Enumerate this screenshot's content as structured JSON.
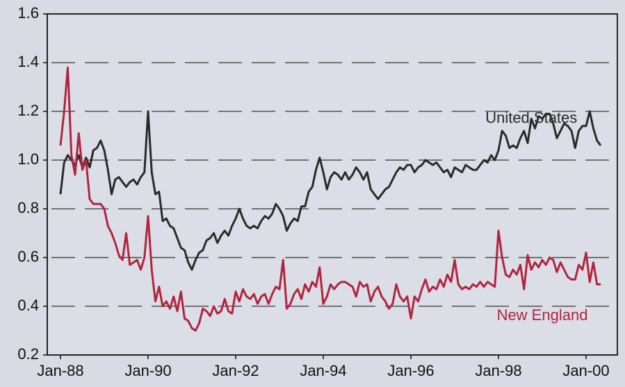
{
  "chart_data": {
    "type": "line",
    "categories": [
      "Jan-88",
      null,
      null,
      null,
      null,
      null,
      null,
      null,
      null,
      null,
      null,
      null,
      null,
      null,
      null,
      null,
      null,
      null,
      null,
      null,
      null,
      null,
      null,
      null,
      "Jan-90",
      null,
      null,
      null,
      null,
      null,
      null,
      null,
      null,
      null,
      null,
      null,
      null,
      null,
      null,
      null,
      null,
      null,
      null,
      null,
      null,
      null,
      null,
      null,
      "Jan-92",
      null,
      null,
      null,
      null,
      null,
      null,
      null,
      null,
      null,
      null,
      null,
      null,
      null,
      null,
      null,
      null,
      null,
      null,
      null,
      null,
      null,
      null,
      null,
      "Jan-94",
      null,
      null,
      null,
      null,
      null,
      null,
      null,
      null,
      null,
      null,
      null,
      null,
      null,
      null,
      null,
      null,
      null,
      null,
      null,
      null,
      null,
      null,
      null,
      "Jan-96",
      null,
      null,
      null,
      null,
      null,
      null,
      null,
      null,
      null,
      null,
      null,
      null,
      null,
      null,
      null,
      null,
      null,
      null,
      null,
      null,
      null,
      null,
      null,
      "Jan-98",
      null,
      null,
      null,
      null,
      null,
      null,
      null,
      null,
      null,
      null,
      null,
      null,
      null,
      null,
      null,
      null,
      null,
      null,
      null,
      null,
      null,
      null,
      null,
      "Jan-00",
      null,
      null,
      null,
      null
    ],
    "series": [
      {
        "name": "United States",
        "color": "#2a2a2a",
        "values": [
          0.86,
          0.99,
          1.02,
          1.0,
          0.98,
          1.02,
          0.97,
          1.01,
          0.97,
          1.04,
          1.05,
          1.08,
          1.04,
          0.96,
          0.86,
          0.92,
          0.93,
          0.91,
          0.89,
          0.91,
          0.92,
          0.9,
          0.93,
          0.95,
          1.2,
          0.95,
          0.86,
          0.87,
          0.75,
          0.76,
          0.73,
          0.72,
          0.68,
          0.64,
          0.63,
          0.58,
          0.55,
          0.59,
          0.62,
          0.63,
          0.67,
          0.68,
          0.7,
          0.66,
          0.69,
          0.71,
          0.69,
          0.73,
          0.76,
          0.8,
          0.76,
          0.73,
          0.72,
          0.73,
          0.72,
          0.75,
          0.77,
          0.76,
          0.78,
          0.82,
          0.8,
          0.77,
          0.71,
          0.74,
          0.76,
          0.75,
          0.81,
          0.81,
          0.87,
          0.89,
          0.96,
          1.01,
          0.95,
          0.88,
          0.93,
          0.95,
          0.94,
          0.92,
          0.95,
          0.92,
          0.94,
          0.97,
          0.95,
          0.92,
          0.95,
          0.88,
          0.86,
          0.84,
          0.86,
          0.88,
          0.89,
          0.92,
          0.95,
          0.97,
          0.96,
          0.98,
          0.98,
          0.95,
          0.97,
          0.98,
          1.0,
          0.99,
          0.98,
          0.99,
          0.97,
          0.95,
          0.96,
          0.93,
          0.97,
          0.96,
          0.95,
          0.98,
          0.97,
          0.96,
          0.96,
          0.98,
          1.0,
          0.99,
          1.02,
          1.0,
          1.04,
          1.12,
          1.1,
          1.05,
          1.06,
          1.05,
          1.09,
          1.12,
          1.07,
          1.17,
          1.13,
          1.18,
          1.17,
          1.19,
          1.19,
          1.15,
          1.09,
          1.12,
          1.15,
          1.14,
          1.12,
          1.05,
          1.12,
          1.14,
          1.14,
          1.2,
          1.13,
          1.08,
          1.06
        ]
      },
      {
        "name": "New England",
        "color": "#b2243d",
        "values": [
          1.06,
          1.2,
          1.38,
          1.02,
          0.94,
          1.11,
          0.96,
          1.0,
          0.84,
          0.82,
          0.82,
          0.82,
          0.8,
          0.73,
          0.7,
          0.66,
          0.61,
          0.59,
          0.7,
          0.57,
          0.58,
          0.59,
          0.55,
          0.6,
          0.77,
          0.55,
          0.42,
          0.48,
          0.4,
          0.42,
          0.39,
          0.44,
          0.38,
          0.46,
          0.35,
          0.34,
          0.31,
          0.3,
          0.33,
          0.39,
          0.38,
          0.36,
          0.4,
          0.37,
          0.38,
          0.43,
          0.38,
          0.37,
          0.46,
          0.42,
          0.47,
          0.44,
          0.43,
          0.45,
          0.41,
          0.44,
          0.45,
          0.41,
          0.45,
          0.48,
          0.47,
          0.59,
          0.39,
          0.41,
          0.45,
          0.47,
          0.43,
          0.49,
          0.46,
          0.5,
          0.48,
          0.56,
          0.41,
          0.44,
          0.49,
          0.47,
          0.49,
          0.5,
          0.5,
          0.49,
          0.48,
          0.44,
          0.5,
          0.48,
          0.49,
          0.42,
          0.46,
          0.48,
          0.44,
          0.42,
          0.39,
          0.41,
          0.49,
          0.44,
          0.42,
          0.44,
          0.35,
          0.44,
          0.42,
          0.47,
          0.51,
          0.46,
          0.48,
          0.47,
          0.51,
          0.48,
          0.53,
          0.5,
          0.59,
          0.49,
          0.47,
          0.48,
          0.47,
          0.49,
          0.48,
          0.5,
          0.48,
          0.5,
          0.49,
          0.48,
          0.71,
          0.6,
          0.53,
          0.52,
          0.55,
          0.53,
          0.57,
          0.47,
          0.61,
          0.55,
          0.58,
          0.56,
          0.59,
          0.57,
          0.6,
          0.59,
          0.54,
          0.58,
          0.55,
          0.52,
          0.51,
          0.51,
          0.57,
          0.55,
          0.62,
          0.5,
          0.58,
          0.49,
          0.49
        ]
      }
    ],
    "ylim": [
      0.2,
      1.6
    ],
    "yticks": [
      0.2,
      0.4,
      0.6,
      0.8,
      {
        "value": 1,
        "label": "1.0"
      },
      1.2,
      1.4,
      1.6
    ],
    "grid": true,
    "annotations": [
      {
        "text": "United States",
        "x": 129,
        "y": 1.17
      },
      {
        "text": "New England",
        "x": 132,
        "y": 0.36
      }
    ]
  }
}
